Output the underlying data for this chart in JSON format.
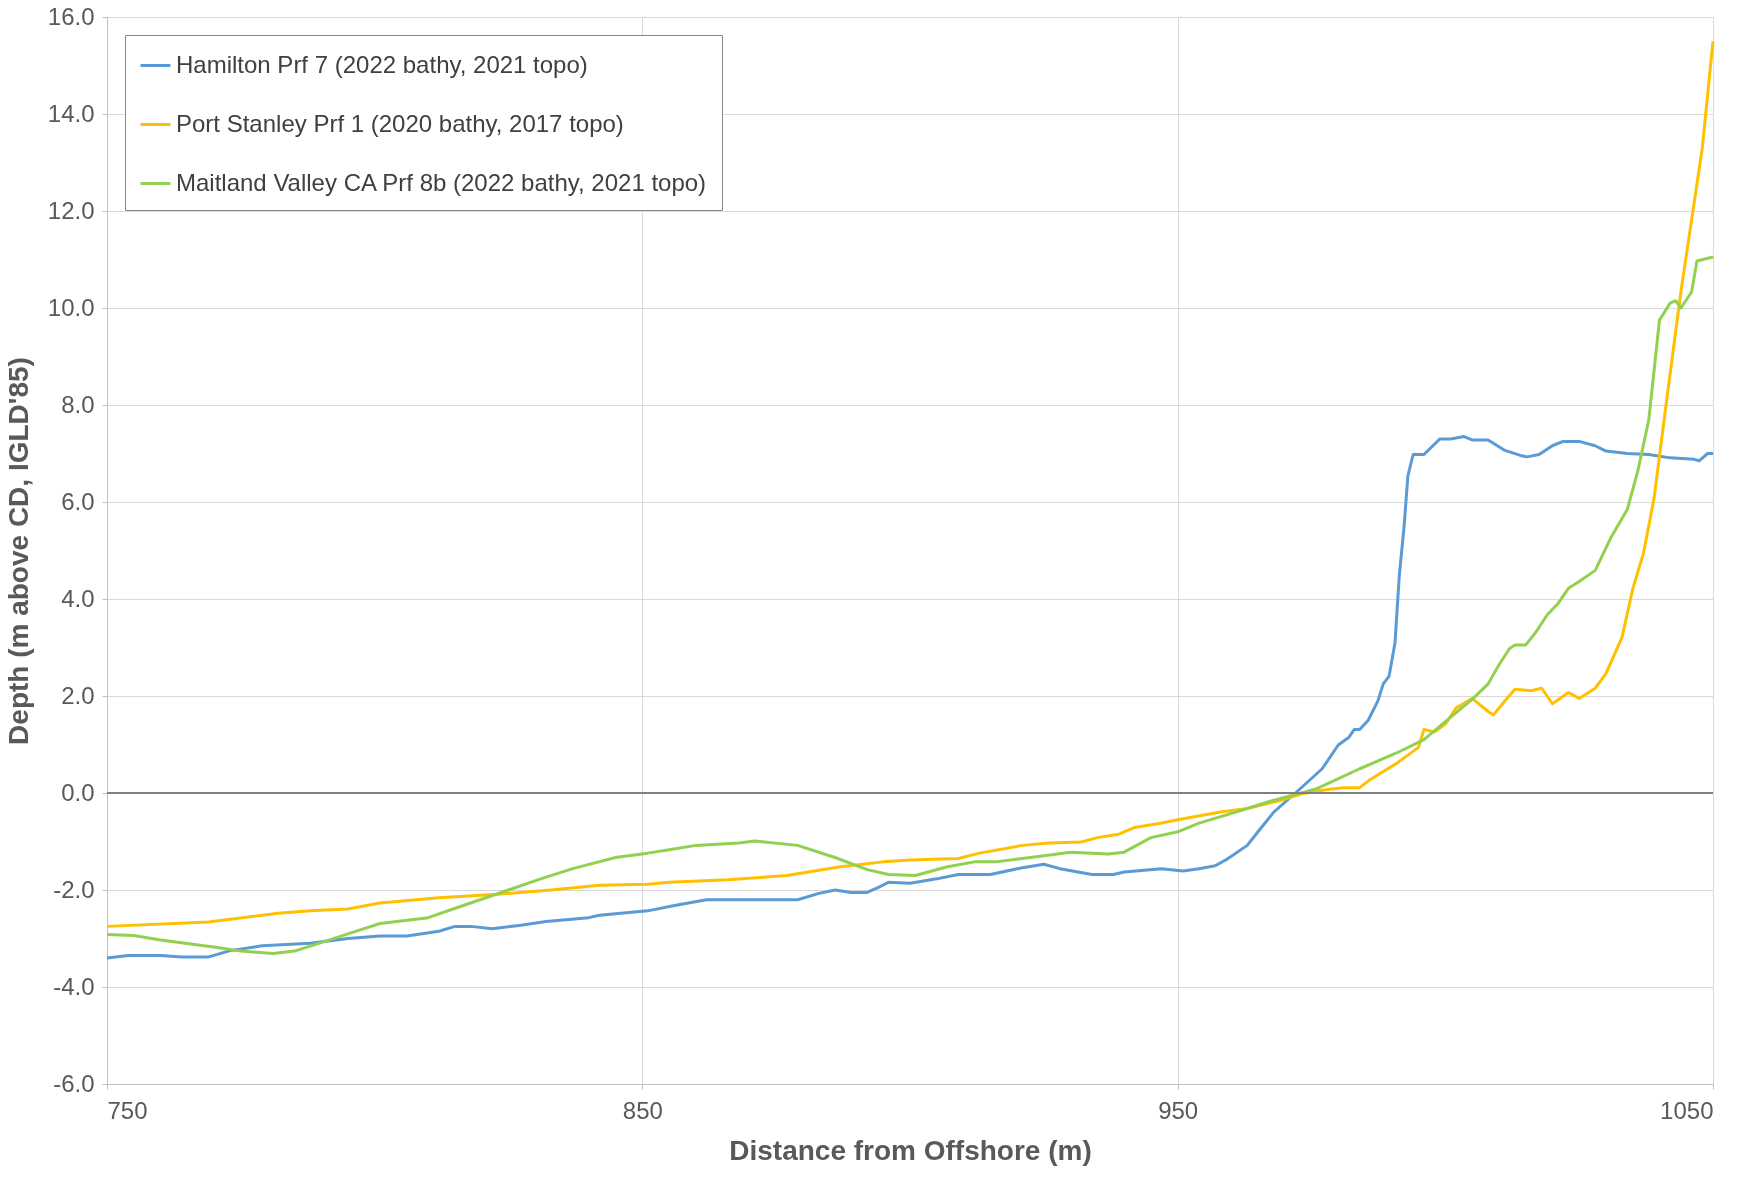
{
  "chart_data": {
    "type": "line",
    "xlabel": "Distance from Offshore (m)",
    "ylabel": "Depth (m above CD, IGLD'85)",
    "xlim": [
      750,
      1050
    ],
    "xticks": [
      750,
      850,
      950,
      1050
    ],
    "ylim": [
      -6,
      16
    ],
    "yticks": [
      {
        "value": -6,
        "label": "-6.0"
      },
      {
        "value": -4,
        "label": "-4.0"
      },
      {
        "value": -2,
        "label": "-2.0"
      },
      {
        "value": 0,
        "label": "0.0"
      },
      {
        "value": 2,
        "label": "2.0"
      },
      {
        "value": 4,
        "label": "4.0"
      },
      {
        "value": 6,
        "label": "6.0"
      },
      {
        "value": 8,
        "label": "8.0"
      },
      {
        "value": 10,
        "label": "10.0"
      },
      {
        "value": 12,
        "label": "12.0"
      },
      {
        "value": 14,
        "label": "14.0"
      },
      {
        "value": 16,
        "label": "16.0"
      }
    ],
    "grid": true,
    "legend": "top left",
    "marker": "none",
    "line_style": "solid",
    "ref_lines": [
      {
        "axis": "y",
        "value": 0,
        "color": "#808080"
      }
    ],
    "series": [
      {
        "name": "Hamilton Prf 7 (2022 bathy, 2021 topo)",
        "color": "#5b9bd5",
        "x": [
          750,
          754,
          760,
          764,
          769,
          773,
          779,
          788,
          795,
          801,
          806,
          812,
          815,
          818,
          822,
          827,
          832,
          840,
          842,
          851,
          856,
          862,
          870,
          879,
          883,
          886,
          889,
          892,
          894,
          896,
          900,
          905,
          909,
          915,
          921,
          925,
          928,
          934,
          938,
          940,
          947,
          951,
          954,
          957,
          959,
          963,
          965,
          968,
          972,
          977,
          980,
          982,
          983,
          984,
          985.6,
          987.4,
          988.4,
          989.5,
          990.6,
          991.4,
          992.3,
          993,
          994,
          996,
          999,
          1001,
          1003.5,
          1005,
          1008,
          1011,
          1014,
          1015.3,
          1017.5,
          1020,
          1022,
          1025,
          1028,
          1030,
          1034,
          1038,
          1042,
          1046.5,
          1047.4,
          1049,
          1050
        ],
        "values": [
          -3.4,
          -3.35,
          -3.35,
          -3.38,
          -3.38,
          -3.25,
          -3.15,
          -3.1,
          -3.0,
          -2.95,
          -2.95,
          -2.85,
          -2.75,
          -2.75,
          -2.8,
          -2.73,
          -2.65,
          -2.57,
          -2.52,
          -2.43,
          -2.32,
          -2.2,
          -2.2,
          -2.2,
          -2.07,
          -2.0,
          -2.05,
          -2.05,
          -1.95,
          -1.84,
          -1.86,
          -1.77,
          -1.68,
          -1.68,
          -1.54,
          -1.47,
          -1.56,
          -1.68,
          -1.68,
          -1.63,
          -1.56,
          -1.61,
          -1.56,
          -1.5,
          -1.38,
          -1.08,
          -0.8,
          -0.39,
          0.0,
          0.5,
          0.99,
          1.15,
          1.31,
          1.31,
          1.5,
          1.9,
          2.25,
          2.41,
          3.1,
          4.48,
          5.5,
          6.54,
          6.98,
          6.98,
          7.3,
          7.3,
          7.35,
          7.28,
          7.28,
          7.07,
          6.96,
          6.93,
          6.98,
          7.16,
          7.25,
          7.25,
          7.16,
          7.05,
          7.0,
          6.98,
          6.91,
          6.88,
          6.85,
          7.0,
          7.0
        ]
      },
      {
        "name": "Port Stanley Prf 1 (2020 bathy, 2017 topo)",
        "color": "#ffc000",
        "x": [
          750,
          769,
          782,
          788,
          795,
          801,
          812,
          823,
          833,
          842,
          851,
          855,
          866,
          877,
          887,
          895,
          900,
          909,
          913,
          921,
          926,
          932,
          935,
          939,
          942,
          947,
          951,
          958,
          963,
          969,
          973,
          978,
          981,
          984,
          986,
          991,
          995,
          996,
          998,
          1000,
          1002,
          1005,
          1008,
          1009,
          1011,
          1013,
          1016,
          1018,
          1020,
          1023,
          1025,
          1028,
          1030,
          1033,
          1035,
          1037,
          1039,
          1041,
          1044,
          1048,
          1050
        ],
        "values": [
          -2.75,
          -2.66,
          -2.48,
          -2.43,
          -2.39,
          -2.27,
          -2.16,
          -2.09,
          -2.0,
          -1.9,
          -1.88,
          -1.84,
          -1.79,
          -1.7,
          -1.52,
          -1.42,
          -1.38,
          -1.35,
          -1.24,
          -1.08,
          -1.03,
          -1.01,
          -0.92,
          -0.85,
          -0.71,
          -0.62,
          -0.53,
          -0.39,
          -0.32,
          -0.16,
          -0.02,
          0.07,
          0.11,
          0.11,
          0.28,
          0.62,
          0.94,
          1.31,
          1.26,
          1.42,
          1.75,
          1.95,
          1.68,
          1.61,
          1.88,
          2.14,
          2.11,
          2.16,
          1.84,
          2.07,
          1.95,
          2.16,
          2.46,
          3.21,
          4.2,
          4.94,
          6.08,
          7.81,
          10.33,
          13.3,
          15.5
        ]
      },
      {
        "name": "Maitland Valley CA Prf 8b (2022 bathy, 2021 topo)",
        "color": "#92d050",
        "x": [
          750,
          755,
          760,
          766,
          771,
          775,
          781,
          785,
          789,
          796,
          801,
          810,
          816,
          825,
          831,
          837,
          845,
          851,
          855,
          860,
          868,
          871,
          879,
          886,
          892,
          896,
          901,
          907,
          912,
          916,
          924,
          930,
          937,
          940,
          945,
          950,
          954,
          961,
          967,
          976,
          984,
          991,
          996,
          1000,
          1005,
          1008,
          1010,
          1012,
          1013,
          1015,
          1017,
          1019,
          1021,
          1023,
          1025,
          1028,
          1031,
          1034,
          1036,
          1038,
          1040,
          1042,
          1043,
          1044,
          1046,
          1047,
          1050
        ],
        "values": [
          -2.92,
          -2.94,
          -3.03,
          -3.12,
          -3.19,
          -3.26,
          -3.31,
          -3.26,
          -3.12,
          -2.87,
          -2.69,
          -2.57,
          -2.34,
          -2.0,
          -1.77,
          -1.56,
          -1.33,
          -1.24,
          -1.17,
          -1.08,
          -1.03,
          -0.99,
          -1.08,
          -1.33,
          -1.58,
          -1.68,
          -1.7,
          -1.52,
          -1.42,
          -1.42,
          -1.31,
          -1.22,
          -1.26,
          -1.22,
          -0.92,
          -0.8,
          -0.62,
          -0.39,
          -0.18,
          0.09,
          0.5,
          0.83,
          1.1,
          1.47,
          1.93,
          2.25,
          2.64,
          2.98,
          3.05,
          3.05,
          3.33,
          3.67,
          3.9,
          4.22,
          4.36,
          4.59,
          5.28,
          5.85,
          6.66,
          7.69,
          9.75,
          10.1,
          10.15,
          10.0,
          10.33,
          10.97,
          11.05
        ]
      }
    ]
  }
}
